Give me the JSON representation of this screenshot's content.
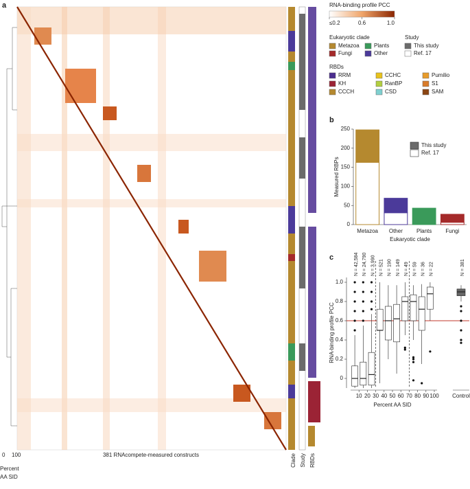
{
  "panel_a": {
    "label": "a",
    "xlabel": "381 RNAcompete-measured constructs",
    "dendro_ticks": [
      0,
      100
    ],
    "dendro_label_lines": [
      "Percent",
      "AA SID"
    ],
    "columns": [
      "Clade",
      "Study",
      "RBDs"
    ]
  },
  "legend": {
    "colorbar": {
      "title": "RNA-binding profile PCC",
      "lim": [
        0.2,
        1.0
      ],
      "ticks": [
        {
          "value": 0.2,
          "label": "≤0.2"
        },
        0.6,
        {
          "value": 1.0,
          "label": "1.0"
        }
      ]
    },
    "clade": {
      "title": "Eukaryotic clade",
      "items": [
        {
          "name": "Metazoa",
          "color": "#b5892f"
        },
        {
          "name": "Plants",
          "color": "#3a9a5a"
        },
        {
          "name": "Fungi",
          "color": "#a52a2a"
        },
        {
          "name": "Other",
          "color": "#4b3a9a"
        }
      ]
    },
    "study": {
      "title": "Study",
      "items": [
        {
          "name": "This study",
          "color": "#6b6b6b"
        },
        {
          "name": "Ref. 17",
          "color": "#ffffff"
        }
      ]
    },
    "rbds": {
      "title": "RBDs",
      "items": [
        {
          "name": "RRM",
          "color": "#4b2d8f"
        },
        {
          "name": "KH",
          "color": "#9b2335"
        },
        {
          "name": "CCCH",
          "color": "#b5892f"
        },
        {
          "name": "CCHC",
          "color": "#e8c21c"
        },
        {
          "name": "RanBP",
          "color": "#b3cf3f"
        },
        {
          "name": "CSD",
          "color": "#7fd0d0"
        },
        {
          "name": "Pumilio",
          "color": "#e89b2a"
        },
        {
          "name": "S1",
          "color": "#d97c2a"
        },
        {
          "name": "SAM",
          "color": "#8b4513"
        }
      ]
    }
  },
  "chart_data": [
    {
      "type": "bar",
      "panel": "b",
      "ylabel": "Measured RBPs",
      "xlabel": "Eukaryotic clade",
      "categories": [
        "Metazoa",
        "Other",
        "Plants",
        "Fungi"
      ],
      "category_colors": [
        "#b5892f",
        "#4b3a9a",
        "#3a9a5a",
        "#a52a2a"
      ],
      "series": [
        {
          "name": "Ref. 17",
          "color": "#ffffff",
          "values": [
            163,
            31,
            0,
            6
          ]
        },
        {
          "name": "This study",
          "color": "#6b6b6b",
          "values": [
            85,
            38,
            43,
            21
          ]
        }
      ],
      "ylim": [
        0,
        250
      ],
      "yticks": [
        0,
        50,
        100,
        150,
        200,
        250
      ]
    },
    {
      "type": "box",
      "panel": "c",
      "ylabel": "RNA-binding profile PCC",
      "xlabel": "Percent AA SID",
      "xlim": [
        0,
        100
      ],
      "xticks": [
        10,
        20,
        30,
        40,
        50,
        60,
        70,
        80,
        90,
        100
      ],
      "ylim": [
        -0.1,
        1.05
      ],
      "yticks": [
        0,
        0.2,
        0.4,
        0.6,
        0.8,
        {
          "value": 1.0,
          "label": "1.0"
        }
      ],
      "hline": 0.6,
      "vlines": [
        30,
        70
      ],
      "boxes": [
        {
          "x": 5,
          "n_label": "N = 42,584",
          "low": -0.1,
          "q1": -0.08,
          "median": 0.0,
          "q3": 0.13,
          "high": 0.45,
          "outliers": [
            0.5,
            0.6,
            0.7,
            0.8,
            0.9,
            1.0
          ]
        },
        {
          "x": 15,
          "n_label": "N = 24,790",
          "low": -0.1,
          "q1": -0.07,
          "median": 0.0,
          "q3": 0.17,
          "high": 0.55,
          "outliers": [
            0.6,
            0.7,
            0.8,
            0.9,
            1.0
          ]
        },
        {
          "x": 25,
          "n_label": "N = 3,990",
          "low": -0.1,
          "q1": -0.07,
          "median": 0.04,
          "q3": 0.27,
          "high": 0.67,
          "outliers": [
            0.72,
            0.8,
            0.9,
            1.0
          ]
        },
        {
          "x": 35,
          "n_label": "N = 521",
          "low": -0.05,
          "q1": 0.5,
          "median": 0.5,
          "q3": 0.72,
          "high": 1.0,
          "outliers": []
        },
        {
          "x": 45,
          "n_label": "N = 190",
          "low": 0.2,
          "q1": 0.4,
          "median": 0.6,
          "q3": 0.75,
          "high": 0.97,
          "outliers": []
        },
        {
          "x": 55,
          "n_label": "N = 149",
          "low": 0.05,
          "q1": 0.38,
          "median": 0.62,
          "q3": 0.77,
          "high": 0.97,
          "outliers": []
        },
        {
          "x": 65,
          "n_label": "N = 49",
          "low": 0.45,
          "q1": 0.6,
          "median": 0.8,
          "q3": 0.85,
          "high": 1.0,
          "outliers": [
            0.32,
            0.3
          ]
        },
        {
          "x": 75,
          "n_label": "N = 59",
          "low": 0.4,
          "q1": 0.6,
          "median": 0.8,
          "q3": 0.87,
          "high": 0.97,
          "outliers": [
            0.22,
            0.2,
            0.17,
            -0.02
          ]
        },
        {
          "x": 85,
          "n_label": "N = 36",
          "low": 0.15,
          "q1": 0.5,
          "median": 0.72,
          "q3": 0.85,
          "high": 0.98,
          "outliers": [
            -0.05
          ]
        },
        {
          "x": 95,
          "n_label": "N = 22",
          "low": 0.6,
          "q1": 0.72,
          "median": 0.88,
          "q3": 0.95,
          "high": 1.0,
          "outliers": [
            0.28
          ]
        }
      ],
      "control": {
        "label": "Control",
        "n_label": "N = 381",
        "low": 0.8,
        "q1": 0.86,
        "median": 0.9,
        "q3": 0.93,
        "high": 0.97,
        "outliers": [
          0.75,
          0.7,
          0.6,
          0.5,
          0.4,
          0.37
        ]
      }
    }
  ]
}
